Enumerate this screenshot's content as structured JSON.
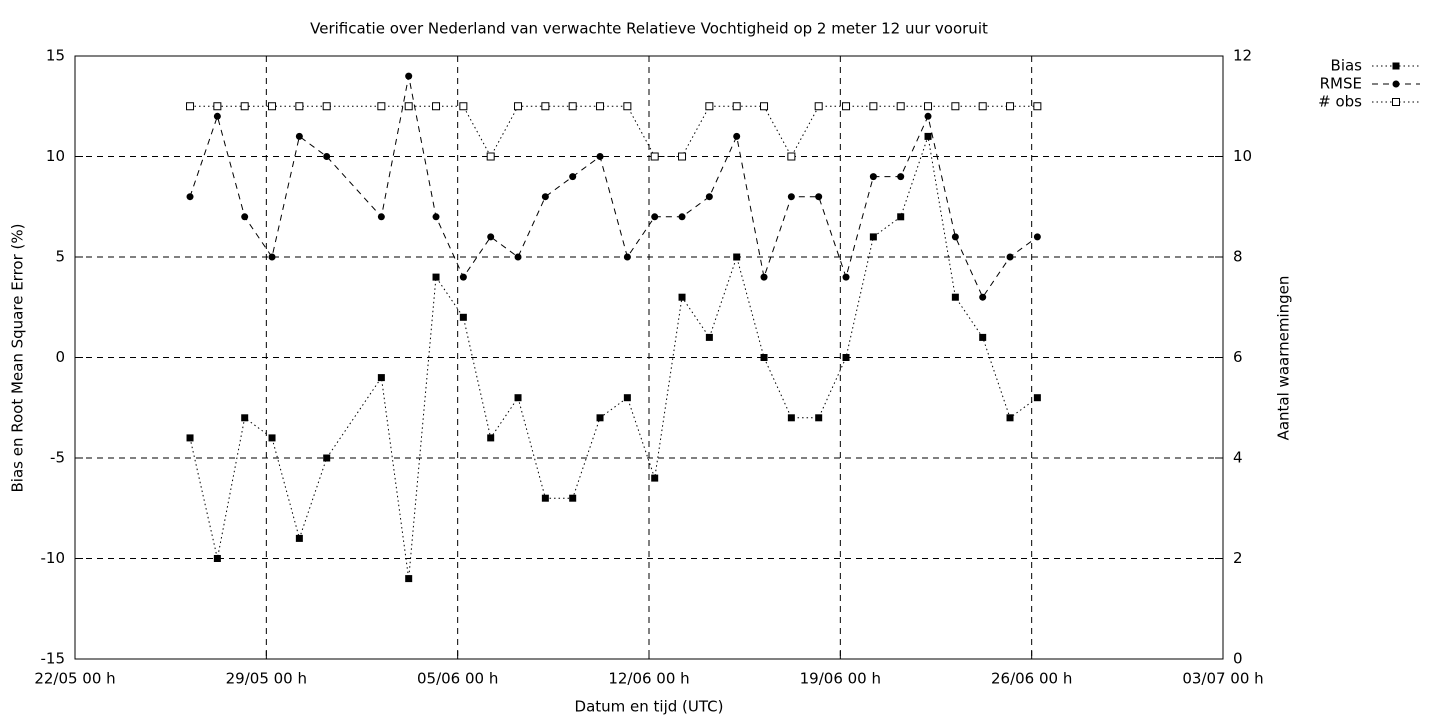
{
  "chart_data": {
    "type": "line",
    "title": "Verificatie over Nederland van verwachte Relatieve Vochtigheid op 2 meter 12 uur vooruit",
    "x_label": "Datum en tijd (UTC)",
    "y_label": "Bias en Root Mean Square Error (%)",
    "y2_label": "Aantal waarnemingen",
    "x": [
      "26/05 05 h",
      "27/05 05 h",
      "28/05 05 h",
      "29/05 05 h",
      "30/05 05 h",
      "31/05 05 h",
      "02/06 05 h",
      "03/06 05 h",
      "04/06 05 h",
      "05/06 05 h",
      "06/06 05 h",
      "07/06 05 h",
      "08/06 05 h",
      "09/06 05 h",
      "10/06 05 h",
      "11/06 05 h",
      "12/06 05 h",
      "13/06 05 h",
      "14/06 05 h",
      "15/06 05 h",
      "16/06 05 h",
      "17/06 05 h",
      "18/06 05 h",
      "19/06 05 h",
      "20/06 05 h",
      "21/06 05 h",
      "22/06 05 h",
      "23/06 05 h",
      "24/06 05 h",
      "25/06 05 h",
      "26/06 05 h"
    ],
    "series": [
      {
        "name": "Bias",
        "color": "#000000",
        "line_style": "dotted",
        "marker": "filled-square",
        "values": [
          -4,
          -10,
          -3,
          -4,
          -9,
          -5,
          -1,
          -11,
          4,
          2,
          -4,
          -2,
          -7,
          -7,
          -3,
          -2,
          -6,
          3,
          1,
          5,
          0,
          -3,
          -3,
          0,
          6,
          7,
          11,
          3,
          1,
          -3,
          -2
        ]
      },
      {
        "name": "RMSE",
        "color": "#000000",
        "line_style": "dashed",
        "marker": "filled-circle",
        "values": [
          8,
          12,
          7,
          5,
          11,
          10,
          7,
          14,
          7,
          4,
          6,
          5,
          8,
          9,
          10,
          5,
          7,
          7,
          8,
          11,
          4,
          8,
          8,
          4,
          9,
          9,
          12,
          6,
          3,
          5,
          6
        ]
      },
      {
        "name": "# obs",
        "color": "#000000",
        "line_style": "dotted",
        "marker": "open-square",
        "axis": "y2",
        "values": [
          11,
          11,
          11,
          11,
          11,
          11,
          11,
          11,
          11,
          11,
          10,
          11,
          11,
          11,
          11,
          11,
          10,
          10,
          11,
          11,
          11,
          10,
          11,
          11,
          11,
          11,
          11,
          11,
          11,
          11,
          11
        ]
      }
    ],
    "xlim": [
      "22/05 00 h",
      "03/07 00 h"
    ],
    "xticks": [
      "22/05 00 h",
      "29/05 00 h",
      "05/06 00 h",
      "12/06 00 h",
      "19/06 00 h",
      "26/06 00 h",
      "03/07 00 h"
    ],
    "ylim": [
      -15,
      15
    ],
    "yticks": [
      -15,
      -10,
      -5,
      0,
      5,
      10,
      15
    ],
    "y2lim": [
      0,
      12
    ],
    "y2ticks": [
      0,
      2,
      4,
      6,
      8,
      10,
      12
    ],
    "grid": true,
    "legend": "top-right-outside"
  }
}
